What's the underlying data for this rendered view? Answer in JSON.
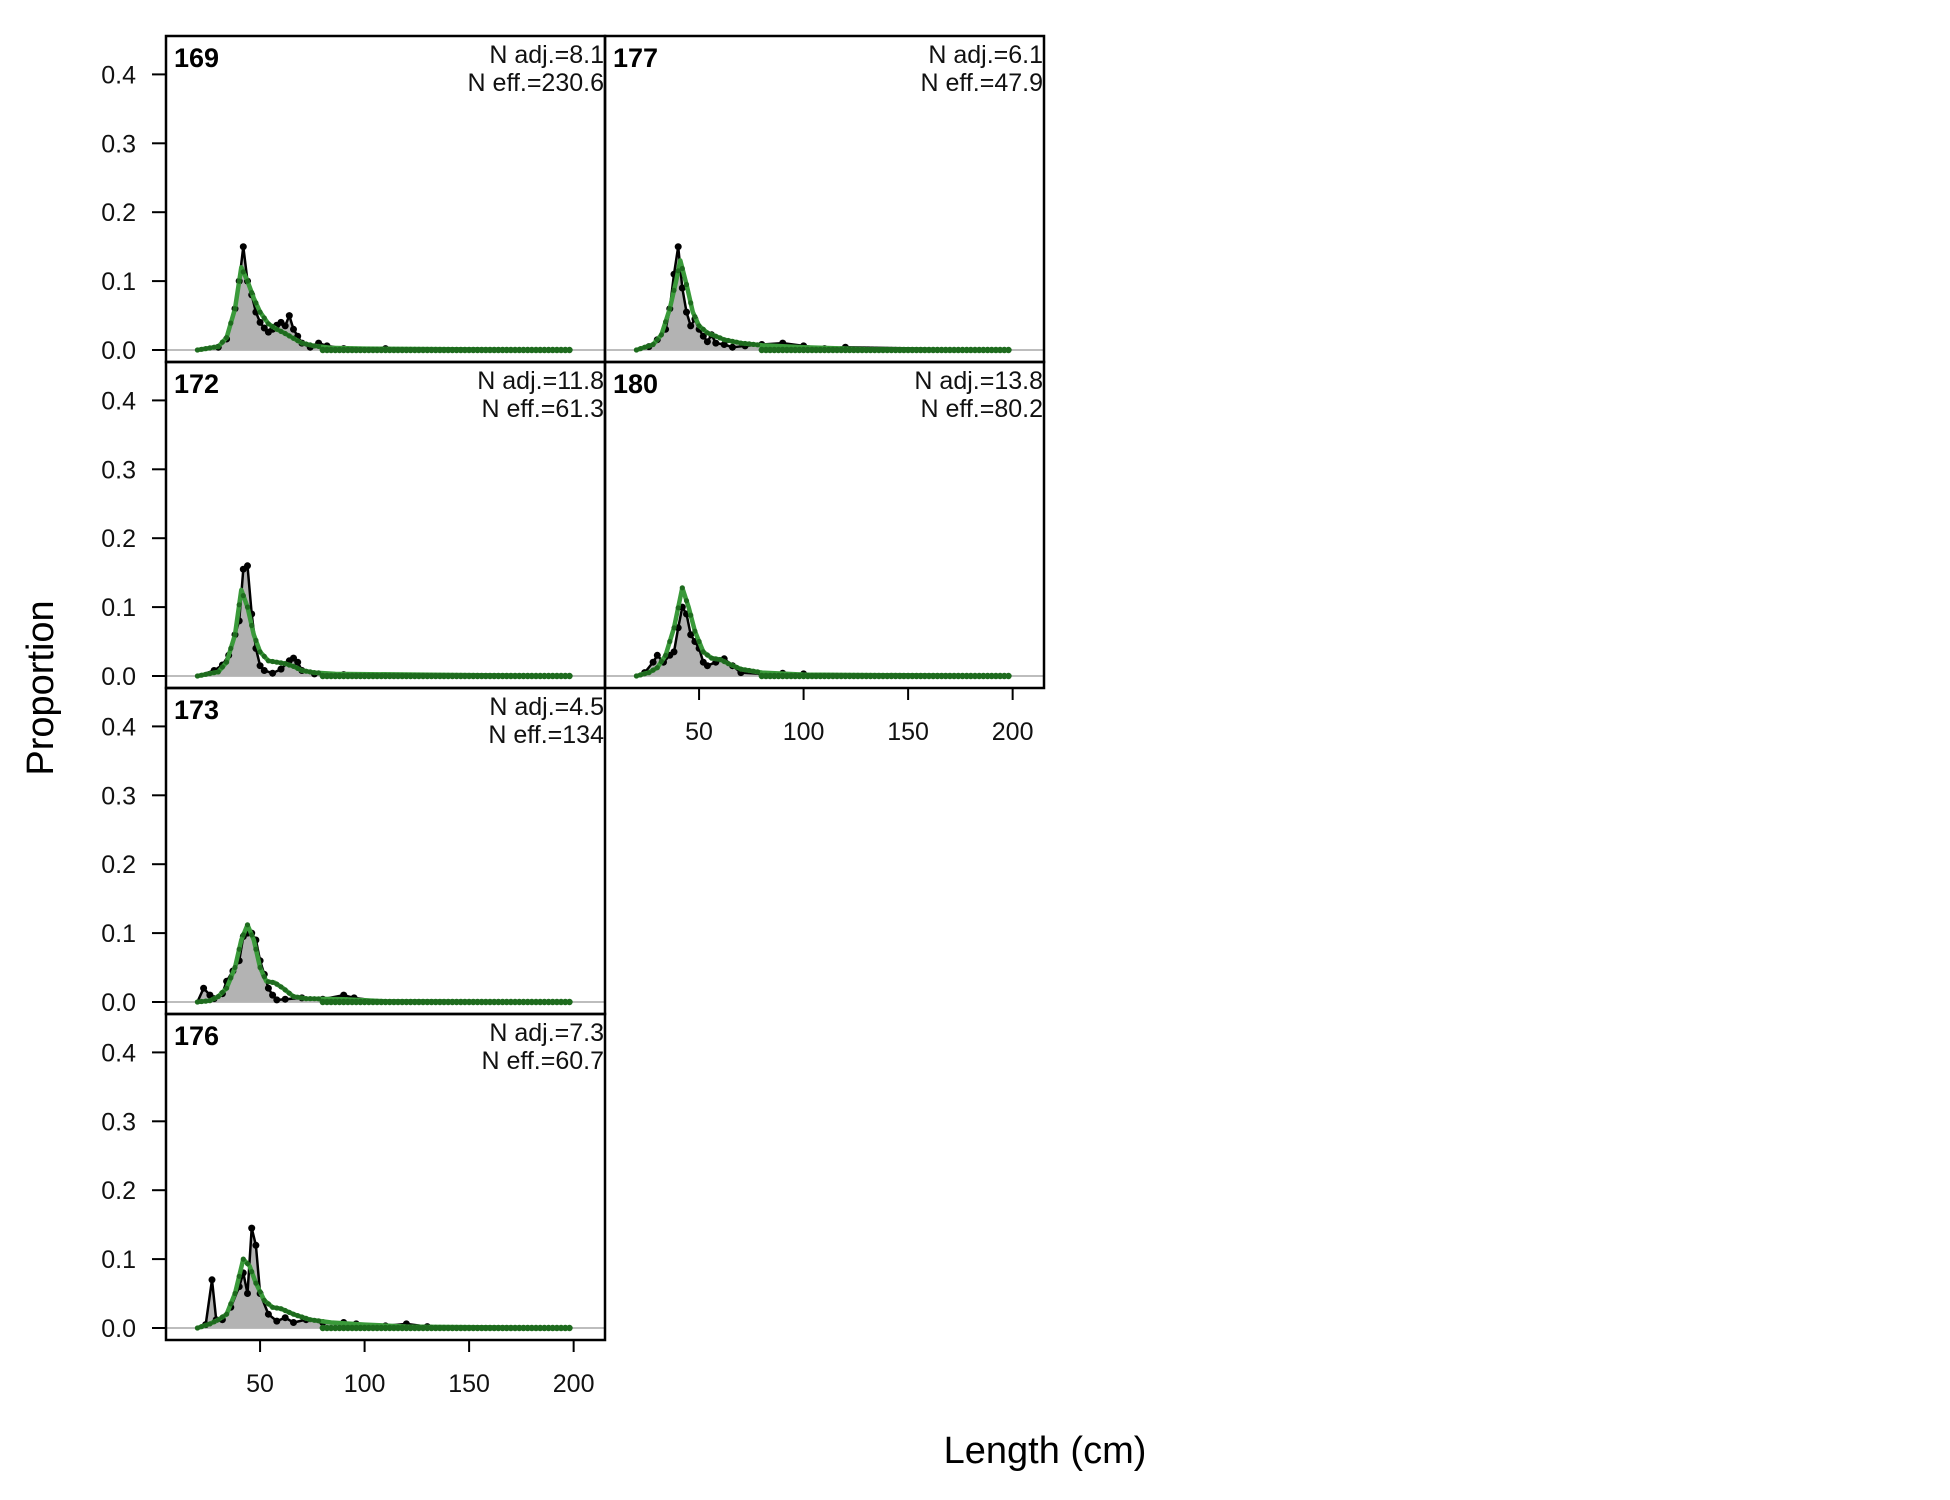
{
  "chart_data": {
    "type": "area",
    "xlabel": "Length (cm)",
    "ylabel": "Proportion",
    "ylim": [
      0,
      0.45
    ],
    "xlim": [
      5,
      215
    ],
    "yticks": [
      "0.0",
      "0.1",
      "0.2",
      "0.3",
      "0.4"
    ],
    "xticks": [
      "50",
      "100",
      "150",
      "200"
    ],
    "series_legend": {
      "observed": "",
      "expected": ""
    },
    "colors": {
      "observed_fill": "#b3b3b3",
      "observed_line": "#000000",
      "expected_line": "#3a9a3a",
      "expected_points": "#1e6b1e",
      "zero_line": "#bdbdbd"
    },
    "panels": [
      {
        "id": "169",
        "n_adj": "N adj.=8.1",
        "n_eff": "N eff.=230.6",
        "observed": [
          [
            20,
            0
          ],
          [
            30,
            0.004
          ],
          [
            34,
            0.016
          ],
          [
            38,
            0.06
          ],
          [
            40,
            0.1
          ],
          [
            42,
            0.15
          ],
          [
            44,
            0.1
          ],
          [
            46,
            0.08
          ],
          [
            48,
            0.055
          ],
          [
            50,
            0.04
          ],
          [
            52,
            0.032
          ],
          [
            54,
            0.026
          ],
          [
            56,
            0.03
          ],
          [
            58,
            0.036
          ],
          [
            60,
            0.04
          ],
          [
            62,
            0.035
          ],
          [
            64,
            0.05
          ],
          [
            66,
            0.03
          ],
          [
            68,
            0.02
          ],
          [
            70,
            0.01
          ],
          [
            74,
            0.004
          ],
          [
            78,
            0.01
          ],
          [
            82,
            0.006
          ],
          [
            90,
            0.002
          ],
          [
            110,
            0.002
          ],
          [
            198,
            0
          ]
        ],
        "expected": [
          [
            20,
            0
          ],
          [
            30,
            0.005
          ],
          [
            34,
            0.018
          ],
          [
            38,
            0.06
          ],
          [
            41,
            0.12
          ],
          [
            44,
            0.1
          ],
          [
            47,
            0.075
          ],
          [
            50,
            0.055
          ],
          [
            54,
            0.038
          ],
          [
            58,
            0.03
          ],
          [
            62,
            0.024
          ],
          [
            66,
            0.017
          ],
          [
            70,
            0.01
          ],
          [
            76,
            0.006
          ],
          [
            84,
            0.003
          ],
          [
            100,
            0.002
          ],
          [
            198,
            0
          ]
        ]
      },
      {
        "id": "172",
        "n_adj": "N adj.=11.8",
        "n_eff": "N eff.=61.3",
        "observed": [
          [
            20,
            0
          ],
          [
            28,
            0.008
          ],
          [
            32,
            0.016
          ],
          [
            35,
            0.03
          ],
          [
            38,
            0.06
          ],
          [
            40,
            0.08
          ],
          [
            42,
            0.155
          ],
          [
            44,
            0.16
          ],
          [
            46,
            0.09
          ],
          [
            48,
            0.04
          ],
          [
            50,
            0.015
          ],
          [
            52,
            0.008
          ],
          [
            56,
            0.004
          ],
          [
            60,
            0.01
          ],
          [
            64,
            0.022
          ],
          [
            66,
            0.026
          ],
          [
            68,
            0.02
          ],
          [
            70,
            0.008
          ],
          [
            76,
            0.003
          ],
          [
            90,
            0.002
          ],
          [
            198,
            0
          ]
        ],
        "expected": [
          [
            20,
            0
          ],
          [
            30,
            0.006
          ],
          [
            34,
            0.02
          ],
          [
            38,
            0.06
          ],
          [
            41,
            0.125
          ],
          [
            44,
            0.1
          ],
          [
            47,
            0.06
          ],
          [
            50,
            0.035
          ],
          [
            54,
            0.022
          ],
          [
            58,
            0.02
          ],
          [
            62,
            0.018
          ],
          [
            66,
            0.014
          ],
          [
            70,
            0.008
          ],
          [
            76,
            0.005
          ],
          [
            86,
            0.003
          ],
          [
            198,
            0
          ]
        ]
      },
      {
        "id": "173",
        "n_adj": "N adj.=4.5",
        "n_eff": "N eff.=134",
        "observed": [
          [
            20,
            0
          ],
          [
            23,
            0.02
          ],
          [
            26,
            0.01
          ],
          [
            28,
            0.005
          ],
          [
            32,
            0.012
          ],
          [
            34,
            0.03
          ],
          [
            37,
            0.045
          ],
          [
            40,
            0.06
          ],
          [
            42,
            0.095
          ],
          [
            44,
            0.1
          ],
          [
            46,
            0.1
          ],
          [
            48,
            0.09
          ],
          [
            50,
            0.06
          ],
          [
            52,
            0.04
          ],
          [
            54,
            0.02
          ],
          [
            56,
            0.01
          ],
          [
            58,
            0.003
          ],
          [
            62,
            0.004
          ],
          [
            70,
            0.006
          ],
          [
            80,
            0.004
          ],
          [
            90,
            0.01
          ],
          [
            95,
            0.006
          ],
          [
            110,
            0
          ],
          [
            198,
            0
          ]
        ],
        "expected": [
          [
            20,
            0
          ],
          [
            26,
            0.002
          ],
          [
            30,
            0.008
          ],
          [
            34,
            0.02
          ],
          [
            38,
            0.05
          ],
          [
            41,
            0.09
          ],
          [
            44,
            0.112
          ],
          [
            47,
            0.09
          ],
          [
            50,
            0.05
          ],
          [
            53,
            0.03
          ],
          [
            57,
            0.028
          ],
          [
            61,
            0.02
          ],
          [
            66,
            0.008
          ],
          [
            72,
            0.005
          ],
          [
            90,
            0.004
          ],
          [
            110,
            0.001
          ],
          [
            198,
            0
          ]
        ]
      },
      {
        "id": "176",
        "n_adj": "N adj.=7.3",
        "n_eff": "N eff.=60.7",
        "observed": [
          [
            20,
            0
          ],
          [
            24,
            0.005
          ],
          [
            27,
            0.07
          ],
          [
            29,
            0.012
          ],
          [
            32,
            0.012
          ],
          [
            36,
            0.03
          ],
          [
            40,
            0.06
          ],
          [
            42,
            0.08
          ],
          [
            44,
            0.05
          ],
          [
            46,
            0.145
          ],
          [
            48,
            0.12
          ],
          [
            50,
            0.05
          ],
          [
            54,
            0.02
          ],
          [
            58,
            0.01
          ],
          [
            62,
            0.015
          ],
          [
            66,
            0.008
          ],
          [
            72,
            0.012
          ],
          [
            80,
            0.008
          ],
          [
            90,
            0.008
          ],
          [
            96,
            0.006
          ],
          [
            110,
            0.003
          ],
          [
            120,
            0.006
          ],
          [
            130,
            0.002
          ],
          [
            198,
            0
          ]
        ],
        "expected": [
          [
            20,
            0
          ],
          [
            26,
            0.006
          ],
          [
            30,
            0.012
          ],
          [
            34,
            0.02
          ],
          [
            38,
            0.05
          ],
          [
            42,
            0.1
          ],
          [
            45,
            0.09
          ],
          [
            48,
            0.065
          ],
          [
            52,
            0.04
          ],
          [
            56,
            0.03
          ],
          [
            60,
            0.028
          ],
          [
            66,
            0.02
          ],
          [
            74,
            0.012
          ],
          [
            84,
            0.008
          ],
          [
            100,
            0.005
          ],
          [
            120,
            0.002
          ],
          [
            198,
            0
          ]
        ]
      },
      {
        "id": "177",
        "n_adj": "N adj.=6.1",
        "n_eff": "N eff.=47.9",
        "observed": [
          [
            20,
            0
          ],
          [
            26,
            0.005
          ],
          [
            30,
            0.015
          ],
          [
            34,
            0.03
          ],
          [
            36,
            0.06
          ],
          [
            38,
            0.11
          ],
          [
            40,
            0.15
          ],
          [
            42,
            0.09
          ],
          [
            44,
            0.055
          ],
          [
            46,
            0.035
          ],
          [
            48,
            0.045
          ],
          [
            50,
            0.03
          ],
          [
            52,
            0.02
          ],
          [
            54,
            0.012
          ],
          [
            56,
            0.022
          ],
          [
            58,
            0.01
          ],
          [
            62,
            0.008
          ],
          [
            66,
            0.004
          ],
          [
            72,
            0.006
          ],
          [
            80,
            0.008
          ],
          [
            90,
            0.01
          ],
          [
            100,
            0.006
          ],
          [
            110,
            0.002
          ],
          [
            120,
            0.004
          ],
          [
            198,
            0
          ]
        ],
        "expected": [
          [
            20,
            0
          ],
          [
            28,
            0.008
          ],
          [
            32,
            0.022
          ],
          [
            36,
            0.06
          ],
          [
            39,
            0.1
          ],
          [
            41,
            0.13
          ],
          [
            44,
            0.095
          ],
          [
            47,
            0.055
          ],
          [
            50,
            0.035
          ],
          [
            54,
            0.025
          ],
          [
            58,
            0.02
          ],
          [
            62,
            0.015
          ],
          [
            70,
            0.01
          ],
          [
            80,
            0.007
          ],
          [
            100,
            0.004
          ],
          [
            130,
            0.001
          ],
          [
            198,
            0
          ]
        ]
      },
      {
        "id": "180",
        "n_adj": "N adj.=13.8",
        "n_eff": "N eff.=80.2",
        "observed": [
          [
            20,
            0
          ],
          [
            24,
            0.005
          ],
          [
            28,
            0.02
          ],
          [
            30,
            0.03
          ],
          [
            33,
            0.02
          ],
          [
            36,
            0.03
          ],
          [
            38,
            0.035
          ],
          [
            40,
            0.07
          ],
          [
            42,
            0.1
          ],
          [
            44,
            0.09
          ],
          [
            46,
            0.06
          ],
          [
            48,
            0.05
          ],
          [
            50,
            0.04
          ],
          [
            52,
            0.02
          ],
          [
            54,
            0.015
          ],
          [
            58,
            0.02
          ],
          [
            62,
            0.025
          ],
          [
            66,
            0.015
          ],
          [
            70,
            0.005
          ],
          [
            80,
            0.003
          ],
          [
            90,
            0.004
          ],
          [
            100,
            0.003
          ],
          [
            198,
            0
          ]
        ],
        "expected": [
          [
            20,
            0
          ],
          [
            26,
            0.005
          ],
          [
            30,
            0.012
          ],
          [
            34,
            0.03
          ],
          [
            38,
            0.07
          ],
          [
            42,
            0.128
          ],
          [
            45,
            0.1
          ],
          [
            48,
            0.065
          ],
          [
            52,
            0.035
          ],
          [
            56,
            0.026
          ],
          [
            60,
            0.024
          ],
          [
            64,
            0.018
          ],
          [
            70,
            0.01
          ],
          [
            80,
            0.005
          ],
          [
            100,
            0.002
          ],
          [
            198,
            0
          ]
        ]
      }
    ]
  }
}
